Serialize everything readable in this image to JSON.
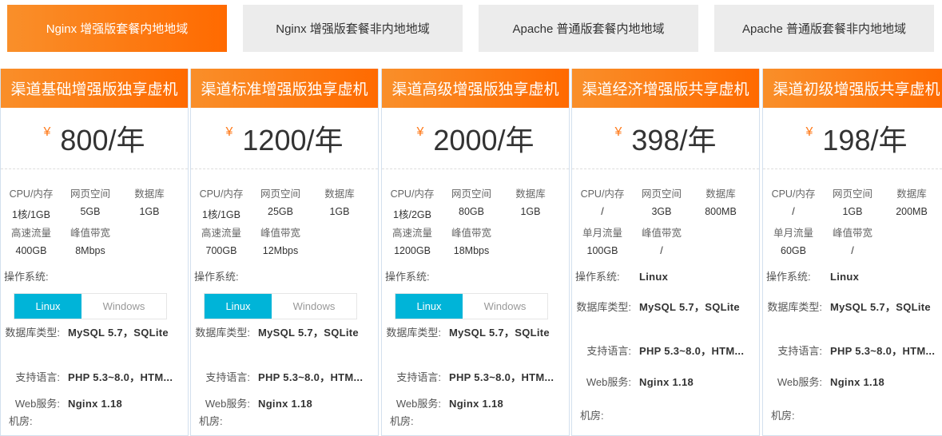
{
  "tabs": [
    {
      "label": "Nginx 增强版套餐内地地域",
      "active": true
    },
    {
      "label": "Nginx 增强版套餐非内地地域"
    },
    {
      "label": "Apache 普通版套餐内地地域"
    },
    {
      "label": "Apache 普通版套餐非内地地域"
    }
  ],
  "accent": "#ff6a00",
  "currency": "¥",
  "labels": {
    "cpu": "CPU/内存",
    "web": "网页空间",
    "db": "数据库",
    "peak": "峰值带宽",
    "os": "操作系统:",
    "dbtype": "数据库类型:",
    "lang": "支持语言:",
    "websrv": "Web服务:",
    "room": "机房:"
  },
  "cards": [
    {
      "title": "渠道基础增强版独享虚机",
      "price": "800/年",
      "cpu": "1核/1GB",
      "web": "5GB",
      "db": "1GB",
      "traffic_label": "高速流量",
      "traffic": "400GB",
      "peak": "8Mbps",
      "os_options": [
        "Linux",
        "Windows"
      ],
      "dbtype": "MySQL 5.7，SQLite",
      "lang": "PHP 5.3~8.0，HTM...",
      "websrv": "Nginx 1.18"
    },
    {
      "title": "渠道标准增强版独享虚机",
      "price": "1200/年",
      "cpu": "1核/1GB",
      "web": "25GB",
      "db": "1GB",
      "traffic_label": "高速流量",
      "traffic": "700GB",
      "peak": "12Mbps",
      "os_options": [
        "Linux",
        "Windows"
      ],
      "dbtype": "MySQL 5.7，SQLite",
      "lang": "PHP 5.3~8.0，HTM...",
      "websrv": "Nginx 1.18"
    },
    {
      "title": "渠道高级增强版独享虚机",
      "price": "2000/年",
      "cpu": "1核/2GB",
      "web": "80GB",
      "db": "1GB",
      "traffic_label": "高速流量",
      "traffic": "1200GB",
      "peak": "18Mbps",
      "os_options": [
        "Linux",
        "Windows"
      ],
      "dbtype": "MySQL 5.7，SQLite",
      "lang": "PHP 5.3~8.0，HTM...",
      "websrv": "Nginx 1.18"
    },
    {
      "title": "渠道经济增强版共享虚机",
      "price": "398/年",
      "cpu": "/",
      "web": "3GB",
      "db": "800MB",
      "traffic_label": "单月流量",
      "traffic": "100GB",
      "peak": "/",
      "os": "Linux",
      "dbtype": "MySQL 5.7，SQLite",
      "lang": "PHP 5.3~8.0，HTM...",
      "websrv": "Nginx 1.18"
    },
    {
      "title": "渠道初级增强版共享虚机",
      "price": "198/年",
      "cpu": "/",
      "web": "1GB",
      "db": "200MB",
      "traffic_label": "单月流量",
      "traffic": "60GB",
      "peak": "/",
      "os": "Linux",
      "dbtype": "MySQL 5.7，SQLite",
      "lang": "PHP 5.3~8.0，HTM...",
      "websrv": "Nginx 1.18"
    }
  ]
}
